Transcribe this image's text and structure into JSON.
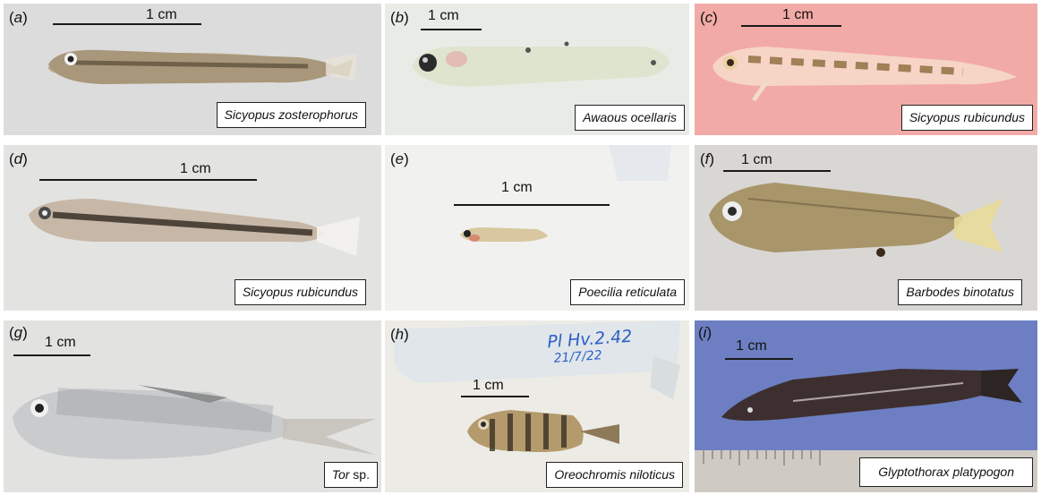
{
  "panels": [
    {
      "id": "a",
      "label_open": "(",
      "letter": "a",
      "label_close": ")",
      "scale": "1 cm",
      "species": "Sicyopus zosterophorus",
      "suffix": ""
    },
    {
      "id": "b",
      "label_open": "(",
      "letter": "b",
      "label_close": ")",
      "scale": "1 cm",
      "species": "Awaous ocellaris",
      "suffix": ""
    },
    {
      "id": "c",
      "label_open": "(",
      "letter": "c",
      "label_close": ")",
      "scale": "1 cm",
      "species": "Sicyopus rubicundus",
      "suffix": ""
    },
    {
      "id": "d",
      "label_open": "(",
      "letter": "d",
      "label_close": ")",
      "scale": "1 cm",
      "species": "Sicyopus rubicundus",
      "suffix": ""
    },
    {
      "id": "e",
      "label_open": "(",
      "letter": "e",
      "label_close": ")",
      "scale": "1 cm",
      "species": "Poecilia reticulata",
      "suffix": ""
    },
    {
      "id": "f",
      "label_open": "(",
      "letter": "f",
      "label_close": ")",
      "scale": "1 cm",
      "species": "Barbodes binotatus",
      "suffix": ""
    },
    {
      "id": "g",
      "label_open": "(",
      "letter": "g",
      "label_close": ")",
      "scale": "1 cm",
      "species": "Tor",
      "suffix": " sp."
    },
    {
      "id": "h",
      "label_open": "(",
      "letter": "h",
      "label_close": ")",
      "scale": "1 cm",
      "species": "Oreochromis niloticus",
      "suffix": ""
    },
    {
      "id": "i",
      "label_open": "(",
      "letter": "i",
      "label_close": ")",
      "scale": "1 cm",
      "species": "Glyptothorax platypogon",
      "suffix": ""
    }
  ],
  "tube_label": {
    "line1": "Pl Hv.2.42",
    "line2": "21/7/22"
  },
  "colors": {
    "panel_a_bg": "#dcdcdc",
    "panel_b_bg": "#e9ece6",
    "panel_c_bg": "#f2aaa6",
    "panel_d_bg": "#e3e3e1",
    "panel_e_bg": "#f1f1ef",
    "panel_f_bg": "#d9d7d3",
    "panel_g_bg": "#e2e2e0",
    "panel_h_bg": "#ecebe6",
    "panel_i_bg": "#6d7fc2"
  }
}
